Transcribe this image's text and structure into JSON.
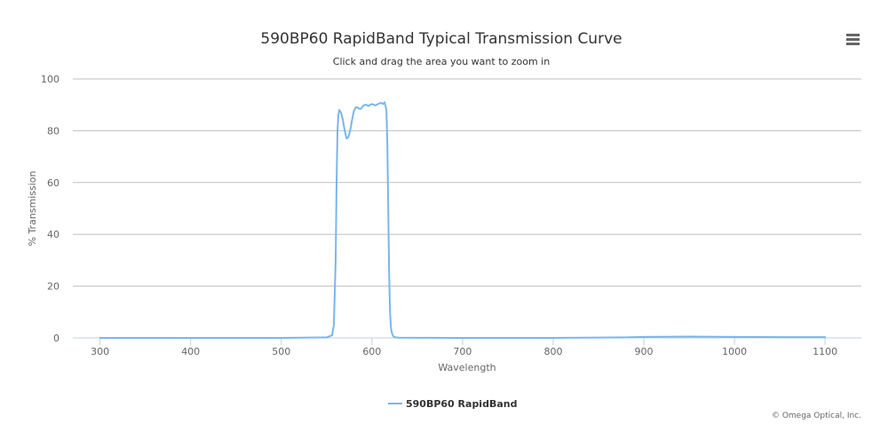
{
  "chart_data": {
    "type": "line",
    "title": "590BP60 RapidBand Typical Transmission Curve",
    "subtitle": "Click and drag the area you want to zoom in",
    "xlabel": "Wavelength",
    "ylabel": "% Transmission",
    "xlim": [
      270,
      1140
    ],
    "ylim": [
      0,
      100
    ],
    "x_ticks": [
      300,
      400,
      500,
      600,
      700,
      800,
      900,
      1000,
      1100
    ],
    "y_ticks": [
      0,
      20,
      40,
      60,
      80,
      100
    ],
    "grid": true,
    "legend_position": "bottom-center",
    "series": [
      {
        "name": "590BP60 RapidBand",
        "color": "#7cb5ec",
        "x": [
          300,
          400,
          500,
          550,
          556,
          558,
          560,
          561,
          562,
          563,
          564,
          566,
          568,
          570,
          572,
          574,
          576,
          578,
          580,
          582,
          584,
          586,
          588,
          590,
          592,
          594,
          596,
          598,
          600,
          602,
          604,
          606,
          608,
          610,
          612,
          614,
          616,
          617,
          618,
          619,
          620,
          621,
          622,
          623,
          624,
          626,
          630,
          700,
          800,
          880,
          900,
          950,
          1000,
          1050,
          1100
        ],
        "y": [
          0,
          0,
          0,
          0.2,
          1,
          5,
          30,
          60,
          80,
          86,
          88,
          87,
          84,
          80,
          77,
          77.5,
          80,
          84,
          87.5,
          89,
          89,
          88.5,
          88.5,
          89.5,
          90,
          90,
          89.5,
          90,
          90.3,
          90,
          89.8,
          90.2,
          90.5,
          90.8,
          90.3,
          91,
          88,
          75,
          50,
          25,
          10,
          4,
          2,
          1,
          0.5,
          0.2,
          0.1,
          0,
          0,
          0.2,
          0.4,
          0.5,
          0.4,
          0.3,
          0.3
        ]
      }
    ]
  },
  "credits": "© Omega Optical, Inc.",
  "menu_icon": "hamburger-menu-icon"
}
